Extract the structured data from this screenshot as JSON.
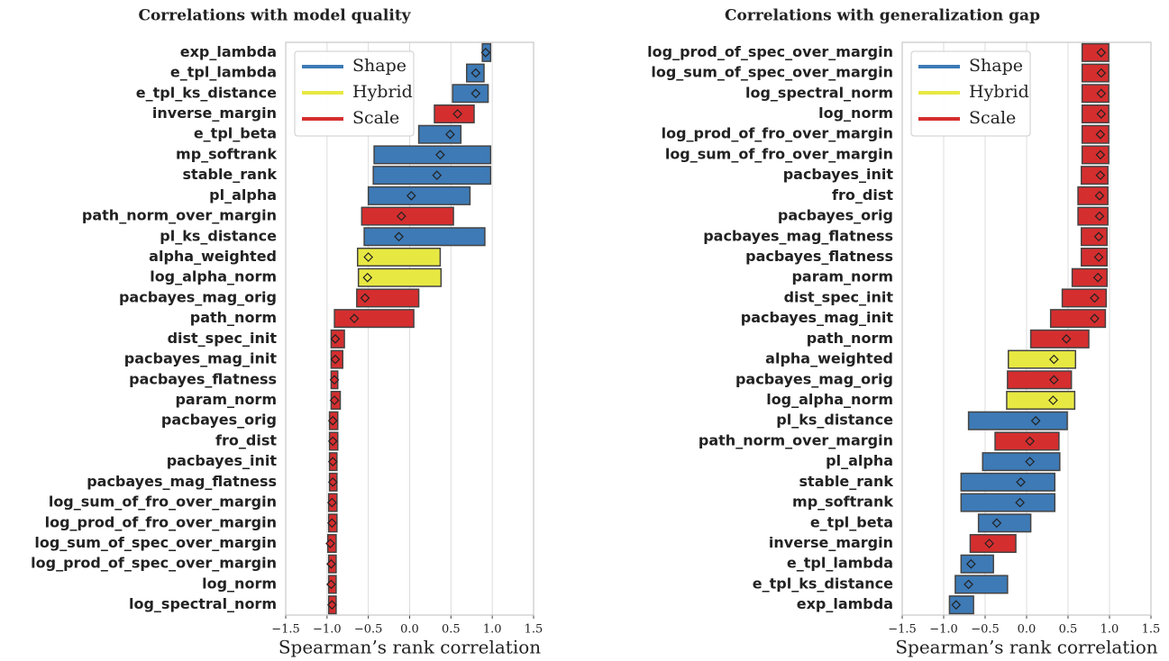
{
  "chart_data": [
    {
      "type": "range",
      "title": "Correlations with model quality",
      "xlabel": "Spearman’s rank correlation",
      "categories": [
        "exp_lambda",
        "e_tpl_lambda",
        "e_tpl_ks_distance",
        "inverse_margin",
        "e_tpl_beta",
        "mp_softrank",
        "stable_rank",
        "pl_alpha",
        "path_norm_over_margin",
        "pl_ks_distance",
        "alpha_weighted",
        "log_alpha_norm",
        "pacbayes_mag_orig",
        "path_norm",
        "dist_spec_init",
        "pacbayes_mag_init",
        "pacbayes_flatness",
        "param_norm",
        "pacbayes_orig",
        "fro_dist",
        "pacbayes_init",
        "pacbayes_mag_flatness",
        "log_sum_of_fro_over_margin",
        "log_prod_of_fro_over_margin",
        "log_sum_of_spec_over_margin",
        "log_prod_of_spec_over_margin",
        "log_norm",
        "log_spectral_norm"
      ],
      "series": [
        {
          "name": "Shape",
          "color": "#3d7ab6",
          "low": [
            0.88,
            0.69,
            0.52,
            null,
            0.11,
            -0.43,
            -0.44,
            -0.5,
            null,
            -0.55,
            null,
            null,
            null,
            null,
            null,
            null,
            null,
            null,
            null,
            null,
            null,
            null,
            null,
            null,
            null,
            null,
            null,
            null
          ],
          "high": [
            0.98,
            0.9,
            0.95,
            null,
            0.62,
            0.98,
            0.98,
            0.73,
            null,
            0.91,
            null,
            null,
            null,
            null,
            null,
            null,
            null,
            null,
            null,
            null,
            null,
            null,
            null,
            null,
            null,
            null,
            null,
            null
          ],
          "mean": [
            0.92,
            0.8,
            0.8,
            null,
            0.49,
            0.37,
            0.33,
            0.02,
            null,
            -0.13,
            null,
            null,
            null,
            null,
            null,
            null,
            null,
            null,
            null,
            null,
            null,
            null,
            null,
            null,
            null,
            null,
            null,
            null
          ]
        },
        {
          "name": "Hybrid",
          "color": "#e8e843",
          "low": [
            null,
            null,
            null,
            null,
            null,
            null,
            null,
            null,
            null,
            null,
            -0.63,
            -0.62,
            null,
            null,
            null,
            null,
            null,
            null,
            null,
            null,
            null,
            null,
            null,
            null,
            null,
            null,
            null,
            null
          ],
          "high": [
            null,
            null,
            null,
            null,
            null,
            null,
            null,
            null,
            null,
            null,
            0.37,
            0.38,
            null,
            null,
            null,
            null,
            null,
            null,
            null,
            null,
            null,
            null,
            null,
            null,
            null,
            null,
            null,
            null
          ],
          "mean": [
            null,
            null,
            null,
            null,
            null,
            null,
            null,
            null,
            null,
            null,
            -0.5,
            -0.51,
            null,
            null,
            null,
            null,
            null,
            null,
            null,
            null,
            null,
            null,
            null,
            null,
            null,
            null,
            null,
            null
          ]
        },
        {
          "name": "Scale",
          "color": "#d52e2f",
          "low": [
            null,
            null,
            null,
            0.3,
            null,
            null,
            null,
            null,
            -0.58,
            null,
            null,
            null,
            -0.64,
            -0.91,
            -0.95,
            -0.95,
            -0.95,
            -0.95,
            -0.97,
            -0.97,
            -0.97,
            -0.97,
            -0.98,
            -0.98,
            -0.99,
            -0.98,
            -0.98,
            -0.98
          ],
          "high": [
            null,
            null,
            null,
            0.78,
            null,
            null,
            null,
            null,
            0.53,
            null,
            null,
            null,
            0.11,
            0.05,
            -0.79,
            -0.81,
            -0.87,
            -0.84,
            -0.87,
            -0.87,
            -0.88,
            -0.88,
            -0.88,
            -0.88,
            -0.89,
            -0.89,
            -0.89,
            -0.89
          ],
          "mean": [
            null,
            null,
            null,
            0.58,
            null,
            null,
            null,
            null,
            -0.1,
            null,
            null,
            null,
            -0.54,
            -0.67,
            -0.9,
            -0.9,
            -0.91,
            -0.91,
            -0.93,
            -0.93,
            -0.93,
            -0.93,
            -0.94,
            -0.94,
            -0.96,
            -0.95,
            -0.95,
            -0.94
          ]
        }
      ],
      "xlim": [
        -1.5,
        1.5
      ],
      "xticks": [
        {
          "value": -1.5,
          "label": "−1.5"
        },
        {
          "value": -1.0,
          "label": "−1.0"
        },
        {
          "value": -0.5,
          "label": "−0.5"
        },
        {
          "value": 0,
          "label": "0.0"
        },
        0.5,
        {
          "value": 1.0,
          "label": "1.0"
        },
        1.5
      ],
      "grid": true,
      "legend": "upper left"
    },
    {
      "type": "range",
      "title": "Correlations with generalization gap",
      "xlabel": "Spearman’s rank correlation",
      "categories": [
        "log_prod_of_spec_over_margin",
        "log_sum_of_spec_over_margin",
        "log_spectral_norm",
        "log_norm",
        "log_prod_of_fro_over_margin",
        "log_sum_of_fro_over_margin",
        "pacbayes_init",
        "fro_dist",
        "pacbayes_orig",
        "pacbayes_mag_flatness",
        "pacbayes_flatness",
        "param_norm",
        "dist_spec_init",
        "pacbayes_mag_init",
        "path_norm",
        "alpha_weighted",
        "pacbayes_mag_orig",
        "log_alpha_norm",
        "pl_ks_distance",
        "path_norm_over_margin",
        "pl_alpha",
        "stable_rank",
        "mp_softrank",
        "e_tpl_beta",
        "inverse_margin",
        "e_tpl_lambda",
        "e_tpl_ks_distance",
        "exp_lambda"
      ],
      "series": [
        {
          "name": "Shape",
          "color": "#3d7ab6",
          "low": [
            null,
            null,
            null,
            null,
            null,
            null,
            null,
            null,
            null,
            null,
            null,
            null,
            null,
            null,
            null,
            null,
            null,
            null,
            -0.7,
            null,
            -0.53,
            -0.79,
            -0.79,
            -0.58,
            null,
            -0.79,
            -0.86,
            -0.93
          ],
          "high": [
            null,
            null,
            null,
            null,
            null,
            null,
            null,
            null,
            null,
            null,
            null,
            null,
            null,
            null,
            null,
            null,
            null,
            null,
            0.49,
            null,
            0.4,
            0.34,
            0.34,
            0.05,
            null,
            -0.4,
            -0.23,
            -0.64
          ],
          "mean": [
            null,
            null,
            null,
            null,
            null,
            null,
            null,
            null,
            null,
            null,
            null,
            null,
            null,
            null,
            null,
            null,
            null,
            null,
            0.11,
            null,
            0.04,
            -0.07,
            -0.08,
            -0.36,
            null,
            -0.67,
            -0.7,
            -0.85
          ]
        },
        {
          "name": "Hybrid",
          "color": "#e8e843",
          "low": [
            null,
            null,
            null,
            null,
            null,
            null,
            null,
            null,
            null,
            null,
            null,
            null,
            null,
            null,
            null,
            -0.22,
            null,
            -0.24,
            null,
            null,
            null,
            null,
            null,
            null,
            null,
            null,
            null,
            null
          ],
          "high": [
            null,
            null,
            null,
            null,
            null,
            null,
            null,
            null,
            null,
            null,
            null,
            null,
            null,
            null,
            null,
            0.59,
            null,
            0.58,
            null,
            null,
            null,
            null,
            null,
            null,
            null,
            null,
            null,
            null
          ],
          "mean": [
            null,
            null,
            null,
            null,
            null,
            null,
            null,
            null,
            null,
            null,
            null,
            null,
            null,
            null,
            null,
            0.33,
            null,
            0.32,
            null,
            null,
            null,
            null,
            null,
            null,
            null,
            null,
            null,
            null
          ]
        },
        {
          "name": "Scale",
          "color": "#d52e2f",
          "low": [
            0.67,
            0.67,
            0.67,
            0.67,
            0.67,
            0.67,
            0.66,
            0.62,
            0.62,
            0.66,
            0.66,
            0.55,
            0.43,
            0.29,
            0.05,
            null,
            -0.23,
            null,
            null,
            -0.38,
            null,
            null,
            null,
            null,
            -0.68,
            null,
            null,
            null
          ],
          "high": [
            0.99,
            0.99,
            0.99,
            0.99,
            0.99,
            0.99,
            0.98,
            0.98,
            0.98,
            0.97,
            0.97,
            0.97,
            0.96,
            0.95,
            0.75,
            null,
            0.54,
            null,
            null,
            0.39,
            null,
            null,
            null,
            null,
            -0.13,
            null,
            null,
            null
          ],
          "mean": [
            0.9,
            0.9,
            0.9,
            0.9,
            0.89,
            0.89,
            0.89,
            0.88,
            0.88,
            0.87,
            0.87,
            0.86,
            0.82,
            0.82,
            0.48,
            null,
            0.33,
            null,
            null,
            0.04,
            null,
            null,
            null,
            null,
            -0.45,
            null,
            null,
            null
          ]
        }
      ],
      "xlim": [
        -1.5,
        1.5
      ],
      "xticks": [
        {
          "value": -1.5,
          "label": "−1.5"
        },
        {
          "value": -1.0,
          "label": "−1.0"
        },
        {
          "value": -0.5,
          "label": "−0.5"
        },
        {
          "value": 0,
          "label": "0.0"
        },
        0.5,
        {
          "value": 1.0,
          "label": "1.0"
        },
        1.5
      ],
      "grid": true,
      "legend": "upper left"
    }
  ]
}
